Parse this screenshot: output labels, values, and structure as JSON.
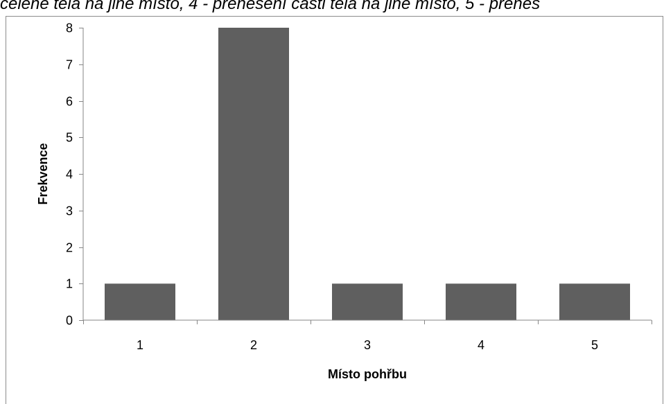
{
  "caption": "celené těla na jiné místo, 4 - přenesení části těla na jiné místo, 5 - přenes",
  "colors": {
    "bar": "#5f5f5f",
    "axis": "#868686",
    "frame": "#8c8c8c"
  },
  "chart_data": {
    "type": "bar",
    "categories": [
      "1",
      "2",
      "3",
      "4",
      "5"
    ],
    "values": [
      1,
      8,
      1,
      1,
      1
    ],
    "xlabel": "Místo pohřbu",
    "ylabel": "Frekvence",
    "ylim": [
      0,
      8
    ],
    "yticks": [
      "0",
      "1",
      "2",
      "3",
      "4",
      "5",
      "6",
      "7",
      "8"
    ],
    "grid": false,
    "legend": "none"
  }
}
